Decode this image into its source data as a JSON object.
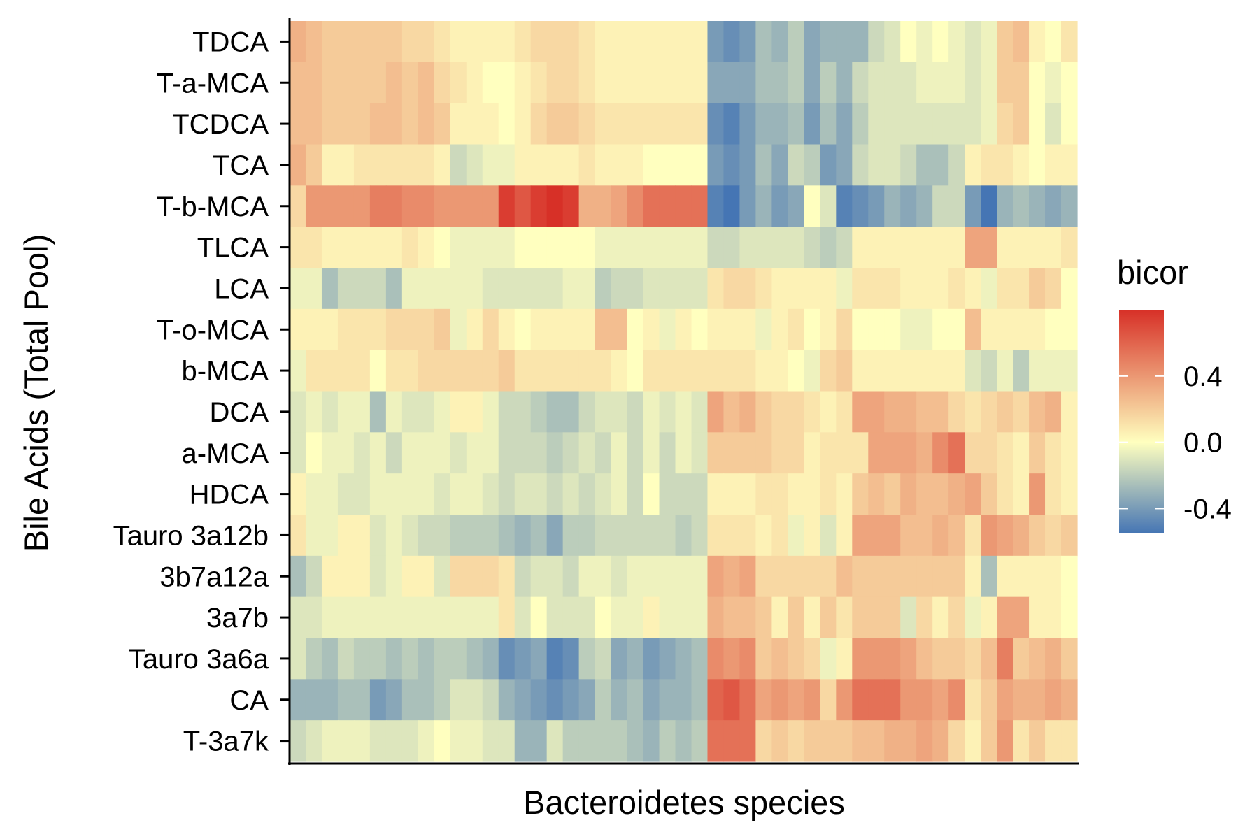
{
  "chart_data": {
    "type": "heatmap",
    "title": "",
    "xlabel": "Bacteroidetes species",
    "ylabel": "Bile Acids (Total Pool)",
    "x_tick_labels": [],
    "rows": [
      "TDCA",
      "T-a-MCA",
      "TCDCA",
      "TCA",
      "T-b-MCA",
      "TLCA",
      "LCA",
      "T-o-MCA",
      "b-MCA",
      "DCA",
      "a-MCA",
      "HDCA",
      "Tauro 3a12b",
      "3b7a12a",
      "3a7b",
      "Tauro 3a6a",
      "CA",
      "T-3a7k"
    ],
    "n_columns": 49,
    "values": [
      [
        0.3,
        0.25,
        0.2,
        0.2,
        0.2,
        0.2,
        0.2,
        0.15,
        0.15,
        0.1,
        0.05,
        0.05,
        0.05,
        0.05,
        0.1,
        0.15,
        0.15,
        0.15,
        0.1,
        0.05,
        0.05,
        0.05,
        0.05,
        0.05,
        0.05,
        0.05,
        -0.4,
        -0.45,
        -0.4,
        -0.25,
        -0.3,
        -0.2,
        -0.35,
        -0.3,
        -0.3,
        -0.3,
        -0.15,
        -0.1,
        0.0,
        -0.05,
        0.0,
        -0.05,
        -0.1,
        -0.05,
        0.2,
        0.25,
        0.05,
        0.0,
        0.1
      ],
      [
        0.25,
        0.25,
        0.2,
        0.2,
        0.2,
        0.2,
        0.25,
        0.2,
        0.25,
        0.15,
        0.1,
        0.05,
        0.0,
        0.0,
        0.05,
        0.1,
        0.15,
        0.15,
        0.1,
        0.05,
        0.05,
        0.05,
        0.05,
        0.05,
        0.05,
        0.05,
        -0.35,
        -0.35,
        -0.35,
        -0.25,
        -0.25,
        -0.2,
        -0.35,
        -0.2,
        -0.3,
        -0.15,
        -0.1,
        -0.1,
        -0.1,
        -0.05,
        -0.05,
        -0.05,
        -0.1,
        -0.05,
        0.2,
        0.2,
        0.0,
        -0.05,
        0.0
      ],
      [
        0.25,
        0.25,
        0.2,
        0.2,
        0.2,
        0.25,
        0.25,
        0.2,
        0.25,
        0.2,
        0.05,
        0.05,
        0.05,
        0.0,
        0.05,
        0.15,
        0.2,
        0.2,
        0.15,
        0.1,
        0.1,
        0.1,
        0.1,
        0.1,
        0.1,
        0.1,
        -0.45,
        -0.5,
        -0.4,
        -0.3,
        -0.3,
        -0.25,
        -0.4,
        -0.25,
        -0.35,
        -0.2,
        -0.1,
        -0.1,
        -0.1,
        -0.1,
        -0.1,
        -0.1,
        -0.1,
        -0.05,
        0.15,
        0.2,
        0.0,
        -0.1,
        0.0
      ],
      [
        0.3,
        0.2,
        0.05,
        0.05,
        0.1,
        0.1,
        0.1,
        0.1,
        0.1,
        0.05,
        -0.15,
        -0.1,
        -0.05,
        -0.05,
        0.05,
        0.05,
        0.05,
        0.05,
        0.1,
        0.05,
        0.05,
        0.05,
        0.0,
        0.0,
        0.0,
        0.0,
        -0.4,
        -0.45,
        -0.4,
        -0.25,
        -0.35,
        -0.15,
        -0.2,
        -0.4,
        -0.35,
        -0.15,
        -0.1,
        -0.1,
        -0.15,
        -0.25,
        -0.25,
        -0.15,
        0.05,
        0.1,
        0.1,
        0.05,
        0.0,
        0.05,
        0.05
      ],
      [
        0.15,
        0.4,
        0.4,
        0.4,
        0.4,
        0.5,
        0.5,
        0.45,
        0.45,
        0.4,
        0.4,
        0.4,
        0.4,
        0.75,
        0.65,
        0.75,
        0.8,
        0.75,
        0.3,
        0.3,
        0.35,
        0.45,
        0.55,
        0.55,
        0.55,
        0.55,
        -0.5,
        -0.55,
        -0.4,
        -0.3,
        -0.4,
        -0.35,
        0.0,
        -0.1,
        -0.5,
        -0.45,
        -0.4,
        -0.3,
        -0.35,
        -0.3,
        -0.15,
        -0.15,
        -0.4,
        -0.55,
        -0.3,
        -0.25,
        -0.3,
        -0.35,
        -0.3
      ],
      [
        0.1,
        0.1,
        0.05,
        0.05,
        0.05,
        0.05,
        0.05,
        0.1,
        0.05,
        0.0,
        -0.05,
        -0.05,
        -0.05,
        -0.05,
        0.0,
        0.0,
        0.0,
        0.0,
        0.0,
        -0.05,
        -0.05,
        -0.05,
        -0.05,
        -0.05,
        -0.05,
        -0.05,
        -0.15,
        -0.15,
        -0.1,
        -0.1,
        -0.1,
        -0.1,
        -0.15,
        -0.2,
        -0.15,
        0.05,
        0.05,
        0.05,
        0.05,
        0.05,
        0.05,
        0.05,
        0.35,
        0.35,
        0.05,
        0.05,
        0.05,
        0.05,
        0.1
      ],
      [
        -0.05,
        -0.05,
        -0.25,
        -0.15,
        -0.15,
        -0.15,
        -0.25,
        -0.05,
        -0.05,
        -0.05,
        -0.05,
        -0.05,
        -0.1,
        -0.1,
        -0.1,
        -0.1,
        -0.1,
        -0.05,
        -0.05,
        -0.2,
        -0.15,
        -0.15,
        -0.1,
        -0.1,
        -0.1,
        -0.1,
        0.1,
        0.15,
        0.15,
        0.1,
        0.05,
        0.05,
        0.05,
        0.05,
        -0.05,
        0.1,
        0.1,
        0.1,
        0.05,
        0.05,
        0.05,
        0.1,
        0.05,
        -0.05,
        0.1,
        0.1,
        0.2,
        0.15,
        0.0
      ],
      [
        0.05,
        0.05,
        0.05,
        0.1,
        0.1,
        0.1,
        0.15,
        0.15,
        0.15,
        0.2,
        -0.05,
        0.05,
        0.15,
        0.05,
        0.0,
        0.05,
        0.05,
        0.05,
        0.05,
        0.25,
        0.25,
        0.0,
        0.05,
        -0.05,
        0.05,
        0.0,
        0.05,
        0.05,
        0.05,
        -0.05,
        0.05,
        0.1,
        0.0,
        0.05,
        0.15,
        0.0,
        0.0,
        0.0,
        -0.05,
        -0.05,
        0.0,
        0.0,
        0.25,
        0.05,
        0.05,
        0.05,
        0.05,
        0.0,
        0.0
      ],
      [
        -0.05,
        0.1,
        0.1,
        0.1,
        0.1,
        0.0,
        0.1,
        0.1,
        0.15,
        0.15,
        0.15,
        0.15,
        0.15,
        0.2,
        0.1,
        0.1,
        0.1,
        0.1,
        0.1,
        0.1,
        0.05,
        0.0,
        0.1,
        0.1,
        0.1,
        0.1,
        0.1,
        0.1,
        0.1,
        0.05,
        0.05,
        0.0,
        -0.05,
        0.15,
        0.2,
        0.05,
        0.05,
        0.05,
        0.05,
        0.05,
        0.05,
        0.05,
        -0.1,
        -0.15,
        -0.05,
        -0.2,
        -0.05,
        -0.05,
        -0.05
      ],
      [
        -0.1,
        -0.05,
        -0.1,
        -0.05,
        -0.05,
        -0.25,
        -0.05,
        -0.1,
        -0.1,
        -0.05,
        0.05,
        0.05,
        -0.05,
        -0.15,
        -0.15,
        -0.2,
        -0.25,
        -0.25,
        -0.15,
        -0.1,
        -0.1,
        -0.15,
        -0.05,
        -0.1,
        -0.05,
        -0.1,
        0.35,
        0.25,
        0.3,
        0.2,
        0.15,
        0.15,
        0.1,
        0.05,
        0.1,
        0.35,
        0.35,
        0.3,
        0.3,
        0.25,
        0.25,
        0.15,
        0.1,
        0.15,
        0.2,
        0.15,
        0.25,
        0.3,
        0.05
      ],
      [
        -0.1,
        0.0,
        -0.05,
        -0.05,
        -0.1,
        -0.05,
        -0.15,
        -0.05,
        -0.05,
        -0.05,
        -0.1,
        -0.05,
        -0.05,
        -0.15,
        -0.15,
        -0.15,
        -0.2,
        -0.15,
        -0.1,
        -0.15,
        -0.05,
        -0.15,
        -0.05,
        -0.15,
        -0.05,
        -0.1,
        0.2,
        0.2,
        0.2,
        0.2,
        0.15,
        0.15,
        0.05,
        0.1,
        0.1,
        0.1,
        0.35,
        0.35,
        0.35,
        0.3,
        0.45,
        0.55,
        0.15,
        0.15,
        0.1,
        0.05,
        0.2,
        0.1,
        0.05
      ],
      [
        0.05,
        -0.05,
        -0.05,
        -0.1,
        -0.1,
        -0.05,
        -0.05,
        -0.05,
        -0.05,
        -0.1,
        -0.05,
        -0.05,
        -0.1,
        -0.15,
        -0.1,
        -0.1,
        -0.15,
        -0.1,
        -0.15,
        -0.1,
        -0.05,
        -0.15,
        0.0,
        -0.15,
        -0.15,
        -0.15,
        0.05,
        0.05,
        0.05,
        0.1,
        0.1,
        0.05,
        0.05,
        0.1,
        0.05,
        0.2,
        0.25,
        0.2,
        0.3,
        0.25,
        0.25,
        0.3,
        0.35,
        0.2,
        0.1,
        0.05,
        0.4,
        0.1,
        0.05
      ],
      [
        0.1,
        -0.05,
        -0.05,
        0.05,
        0.05,
        -0.1,
        -0.05,
        -0.1,
        -0.15,
        -0.15,
        -0.2,
        -0.2,
        -0.2,
        -0.25,
        -0.3,
        -0.25,
        -0.35,
        -0.2,
        -0.2,
        -0.15,
        -0.15,
        -0.15,
        -0.15,
        -0.15,
        -0.2,
        -0.15,
        0.1,
        0.1,
        0.1,
        0.05,
        0.1,
        -0.05,
        0.05,
        -0.1,
        0.05,
        0.35,
        0.35,
        0.35,
        0.25,
        0.25,
        0.3,
        0.25,
        0.1,
        0.4,
        0.35,
        0.3,
        0.2,
        0.15,
        0.2
      ],
      [
        -0.25,
        -0.15,
        0.05,
        0.05,
        0.05,
        -0.1,
        -0.05,
        0.05,
        0.05,
        -0.1,
        0.15,
        0.15,
        0.15,
        0.1,
        -0.15,
        -0.1,
        -0.1,
        -0.15,
        -0.05,
        -0.05,
        -0.1,
        -0.05,
        -0.05,
        -0.05,
        -0.05,
        -0.05,
        0.35,
        0.3,
        0.35,
        0.15,
        0.15,
        0.15,
        0.15,
        0.15,
        0.25,
        0.2,
        0.2,
        0.2,
        0.2,
        0.2,
        0.2,
        0.2,
        0.05,
        -0.25,
        0.05,
        0.05,
        0.05,
        0.05,
        0.0
      ],
      [
        -0.1,
        -0.1,
        -0.05,
        -0.05,
        -0.05,
        -0.05,
        -0.05,
        -0.05,
        -0.05,
        -0.05,
        -0.05,
        -0.05,
        -0.05,
        0.1,
        -0.1,
        0.0,
        -0.1,
        -0.1,
        -0.1,
        0.0,
        -0.05,
        -0.05,
        0.05,
        -0.05,
        -0.05,
        -0.05,
        0.3,
        0.25,
        0.25,
        0.2,
        0.05,
        0.2,
        0.05,
        0.2,
        0.1,
        0.2,
        0.2,
        0.2,
        -0.1,
        0.15,
        0.05,
        0.15,
        -0.05,
        0.05,
        0.35,
        0.35,
        0.05,
        0.05,
        0.0
      ],
      [
        -0.1,
        -0.2,
        -0.25,
        -0.15,
        -0.2,
        -0.2,
        -0.25,
        -0.2,
        -0.25,
        -0.2,
        -0.2,
        -0.25,
        -0.3,
        -0.45,
        -0.4,
        -0.35,
        -0.5,
        -0.45,
        -0.2,
        -0.15,
        -0.35,
        -0.3,
        -0.4,
        -0.35,
        -0.3,
        -0.25,
        0.45,
        0.4,
        0.45,
        0.2,
        0.25,
        0.2,
        0.15,
        -0.05,
        0.05,
        0.4,
        0.4,
        0.4,
        0.35,
        0.25,
        0.2,
        0.2,
        0.15,
        0.25,
        0.5,
        0.2,
        0.25,
        0.3,
        0.2
      ],
      [
        -0.3,
        -0.3,
        -0.3,
        -0.25,
        -0.25,
        -0.4,
        -0.35,
        -0.25,
        -0.25,
        -0.2,
        -0.1,
        -0.1,
        -0.15,
        -0.3,
        -0.35,
        -0.4,
        -0.45,
        -0.4,
        -0.35,
        -0.2,
        -0.3,
        -0.25,
        -0.35,
        -0.3,
        -0.3,
        -0.25,
        0.6,
        0.65,
        0.55,
        0.35,
        0.4,
        0.35,
        0.4,
        0.15,
        0.4,
        0.55,
        0.55,
        0.55,
        0.4,
        0.4,
        0.35,
        0.45,
        0.1,
        0.2,
        0.35,
        0.3,
        0.3,
        0.35,
        0.3
      ],
      [
        -0.15,
        -0.1,
        -0.05,
        -0.05,
        -0.05,
        -0.1,
        -0.1,
        -0.1,
        -0.05,
        0.0,
        -0.05,
        -0.05,
        -0.1,
        -0.1,
        -0.3,
        -0.3,
        -0.1,
        -0.2,
        -0.2,
        -0.2,
        -0.2,
        -0.25,
        -0.3,
        -0.2,
        -0.25,
        -0.2,
        0.55,
        0.55,
        0.55,
        0.15,
        0.2,
        0.15,
        0.2,
        0.2,
        0.2,
        0.25,
        0.25,
        0.3,
        0.3,
        0.35,
        0.3,
        0.15,
        0.05,
        0.2,
        0.4,
        0.1,
        0.2,
        0.1,
        0.1
      ]
    ],
    "color_scale": {
      "domain": [
        -0.55,
        0.0,
        0.8
      ],
      "colors": [
        "#4575b4",
        "#ffffbf",
        "#d73027"
      ]
    },
    "legend": {
      "title": "bicor",
      "ticks": [
        "0.4",
        "0.0",
        "-0.4"
      ],
      "tick_values": [
        0.4,
        0.0,
        -0.4
      ],
      "placement": "right"
    }
  }
}
